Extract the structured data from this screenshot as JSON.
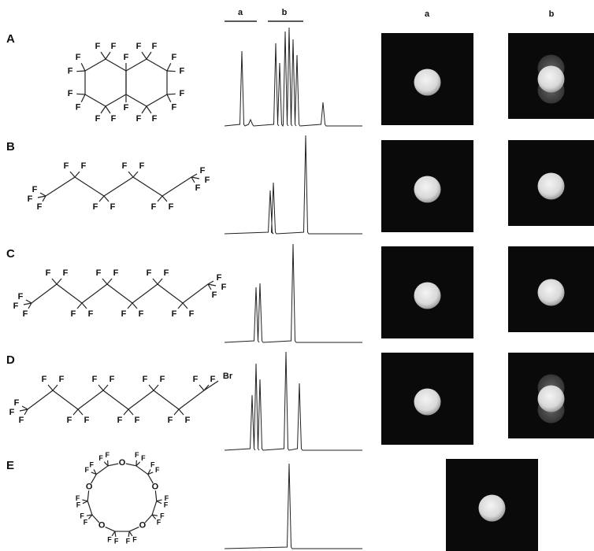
{
  "column_headers": {
    "spectrum": [
      "a",
      "b"
    ],
    "images": [
      "a",
      "b"
    ]
  },
  "rows": [
    {
      "label": "A",
      "atoms": [
        "F",
        "F",
        "F",
        "F",
        "F",
        "F",
        "F",
        "F",
        "F",
        "F",
        "F",
        "F",
        "F",
        "F",
        "F",
        "F",
        "F",
        "F"
      ]
    },
    {
      "label": "B",
      "atoms": [
        "F",
        "F",
        "F",
        "F",
        "F",
        "F",
        "F",
        "F",
        "F",
        "F",
        "F",
        "F",
        "F",
        "F"
      ]
    },
    {
      "label": "C",
      "atoms": [
        "F",
        "F",
        "F",
        "F",
        "F",
        "F",
        "F",
        "F",
        "F",
        "F",
        "F",
        "F",
        "F",
        "F",
        "F",
        "F",
        "F",
        "F"
      ]
    },
    {
      "label": "D",
      "atoms": [
        "F",
        "F",
        "F",
        "F",
        "F",
        "F",
        "F",
        "F",
        "F",
        "F",
        "F",
        "F",
        "F",
        "F",
        "F",
        "F",
        "F",
        "Br"
      ]
    },
    {
      "label": "E",
      "atoms": [
        "O",
        "F",
        "F",
        "F",
        "F",
        "O",
        "F",
        "F",
        "F",
        "F",
        "O",
        "F",
        "F",
        "F",
        "F",
        "O",
        "F",
        "F",
        "F",
        "F",
        "O",
        "F",
        "F",
        "F",
        "F"
      ]
    }
  ]
}
